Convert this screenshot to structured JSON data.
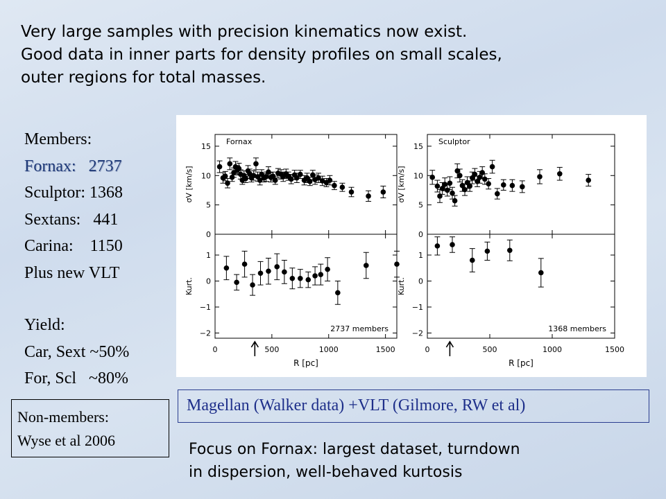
{
  "headline": [
    "Very large samples with precision kinematics now exist.",
    "Good data in inner parts for density profiles on small scales,",
    "outer regions for total masses."
  ],
  "members": {
    "title": "Members:",
    "rows": [
      "Fornax:   2737",
      "Sculptor: 1368",
      "Sextans:   441",
      "Carina:    1150",
      "Plus new VLT"
    ]
  },
  "yield": {
    "title": "Yield:",
    "rows": [
      "Car, Sext ~50%",
      "For, Scl   ~80%"
    ]
  },
  "nonmembers": [
    "Non-members:",
    "Wyse et al 2006"
  ],
  "caption": "Magellan (Walker data) +VLT (Gilmore, RW et al)",
  "focus": [
    "Focus on Fornax: largest dataset, turndown",
    "in dispersion, well-behaved kurtosis"
  ],
  "chart_data": [
    {
      "type": "scatter",
      "galaxy": "Fornax",
      "annotation": "2737 members",
      "xlabel": "R [pc]",
      "xlim": [
        0,
        1600
      ],
      "xticks": [
        0,
        500,
        1000,
        1500
      ],
      "arrow_x": 350,
      "panels": [
        {
          "ylabel": "σV [km/s]",
          "ylim": [
            0,
            17
          ],
          "yticks": [
            0,
            5,
            10,
            15
          ],
          "points": [
            {
              "x": 40,
              "y": 11.5,
              "err": 1.0
            },
            {
              "x": 70,
              "y": 9.6,
              "err": 0.9
            },
            {
              "x": 90,
              "y": 9.9,
              "err": 0.8
            },
            {
              "x": 110,
              "y": 8.7,
              "err": 0.8
            },
            {
              "x": 130,
              "y": 12.0,
              "err": 1.0
            },
            {
              "x": 150,
              "y": 9.7,
              "err": 0.7
            },
            {
              "x": 165,
              "y": 10.5,
              "err": 0.8
            },
            {
              "x": 180,
              "y": 11.5,
              "err": 0.9
            },
            {
              "x": 195,
              "y": 10.9,
              "err": 0.8
            },
            {
              "x": 210,
              "y": 11.2,
              "err": 0.9
            },
            {
              "x": 225,
              "y": 10.2,
              "err": 0.8
            },
            {
              "x": 240,
              "y": 9.2,
              "err": 0.7
            },
            {
              "x": 255,
              "y": 10.0,
              "err": 0.8
            },
            {
              "x": 270,
              "y": 9.5,
              "err": 0.7
            },
            {
              "x": 290,
              "y": 10.8,
              "err": 0.9
            },
            {
              "x": 305,
              "y": 10.3,
              "err": 0.8
            },
            {
              "x": 320,
              "y": 9.6,
              "err": 0.7
            },
            {
              "x": 340,
              "y": 10.0,
              "err": 0.8
            },
            {
              "x": 360,
              "y": 12.0,
              "err": 1.0
            },
            {
              "x": 375,
              "y": 9.8,
              "err": 0.8
            },
            {
              "x": 395,
              "y": 9.2,
              "err": 0.8
            },
            {
              "x": 410,
              "y": 10.2,
              "err": 0.8
            },
            {
              "x": 430,
              "y": 9.6,
              "err": 0.7
            },
            {
              "x": 450,
              "y": 9.8,
              "err": 0.8
            },
            {
              "x": 470,
              "y": 10.6,
              "err": 0.9
            },
            {
              "x": 490,
              "y": 9.7,
              "err": 0.8
            },
            {
              "x": 510,
              "y": 9.9,
              "err": 0.7
            },
            {
              "x": 530,
              "y": 9.2,
              "err": 0.7
            },
            {
              "x": 555,
              "y": 10.4,
              "err": 0.8
            },
            {
              "x": 580,
              "y": 10.2,
              "err": 0.8
            },
            {
              "x": 600,
              "y": 9.8,
              "err": 0.8
            },
            {
              "x": 625,
              "y": 10.3,
              "err": 0.8
            },
            {
              "x": 645,
              "y": 9.9,
              "err": 0.7
            },
            {
              "x": 670,
              "y": 9.4,
              "err": 0.8
            },
            {
              "x": 700,
              "y": 10.1,
              "err": 0.8
            },
            {
              "x": 720,
              "y": 9.6,
              "err": 0.8
            },
            {
              "x": 750,
              "y": 10.2,
              "err": 0.7
            },
            {
              "x": 785,
              "y": 9.2,
              "err": 0.8
            },
            {
              "x": 810,
              "y": 9.6,
              "err": 0.8
            },
            {
              "x": 835,
              "y": 9.0,
              "err": 0.7
            },
            {
              "x": 860,
              "y": 10.1,
              "err": 0.8
            },
            {
              "x": 880,
              "y": 9.3,
              "err": 0.8
            },
            {
              "x": 910,
              "y": 9.6,
              "err": 0.8
            },
            {
              "x": 945,
              "y": 9.1,
              "err": 0.8
            },
            {
              "x": 980,
              "y": 8.8,
              "err": 0.7
            },
            {
              "x": 1010,
              "y": 9.2,
              "err": 0.8
            },
            {
              "x": 1050,
              "y": 8.3,
              "err": 0.7
            },
            {
              "x": 1120,
              "y": 8.0,
              "err": 0.7
            },
            {
              "x": 1200,
              "y": 7.2,
              "err": 0.8
            },
            {
              "x": 1350,
              "y": 6.5,
              "err": 0.9
            },
            {
              "x": 1480,
              "y": 7.2,
              "err": 1.0
            }
          ]
        },
        {
          "ylabel": "Kurt.",
          "ylim": [
            -2.2,
            1.8
          ],
          "yticks": [
            -2,
            -1,
            0,
            1
          ],
          "points": [
            {
              "x": 100,
              "y": 0.5,
              "err": 0.45
            },
            {
              "x": 190,
              "y": -0.05,
              "err": 0.3
            },
            {
              "x": 260,
              "y": 0.65,
              "err": 0.5
            },
            {
              "x": 330,
              "y": -0.15,
              "err": 0.4
            },
            {
              "x": 400,
              "y": 0.3,
              "err": 0.45
            },
            {
              "x": 470,
              "y": 0.38,
              "err": 0.5
            },
            {
              "x": 545,
              "y": 0.55,
              "err": 0.5
            },
            {
              "x": 610,
              "y": 0.35,
              "err": 0.45
            },
            {
              "x": 680,
              "y": 0.1,
              "err": 0.4
            },
            {
              "x": 750,
              "y": 0.1,
              "err": 0.35
            },
            {
              "x": 820,
              "y": 0.05,
              "err": 0.3
            },
            {
              "x": 880,
              "y": 0.2,
              "err": 0.35
            },
            {
              "x": 930,
              "y": 0.25,
              "err": 0.4
            },
            {
              "x": 990,
              "y": 0.45,
              "err": 0.45
            },
            {
              "x": 1080,
              "y": -0.45,
              "err": 0.45
            },
            {
              "x": 1330,
              "y": 0.6,
              "err": 0.5
            },
            {
              "x": 1600,
              "y": 0.65,
              "err": 0.5
            }
          ]
        }
      ]
    },
    {
      "type": "scatter",
      "galaxy": "Sculptor",
      "annotation": "1368 members",
      "xlabel": "R [pc]",
      "xlim": [
        0,
        1500
      ],
      "xticks": [
        0,
        500,
        1000,
        1500
      ],
      "arrow_x": 180,
      "panels": [
        {
          "ylabel": "σV [km/s]",
          "ylim": [
            0,
            17
          ],
          "yticks": [
            0,
            5,
            10,
            15
          ],
          "points": [
            {
              "x": 40,
              "y": 9.7,
              "err": 1.2
            },
            {
              "x": 80,
              "y": 8.2,
              "err": 1.0
            },
            {
              "x": 100,
              "y": 6.5,
              "err": 1.1
            },
            {
              "x": 120,
              "y": 7.8,
              "err": 1.0
            },
            {
              "x": 140,
              "y": 8.5,
              "err": 1.1
            },
            {
              "x": 160,
              "y": 7.5,
              "err": 1.0
            },
            {
              "x": 180,
              "y": 8.7,
              "err": 1.1
            },
            {
              "x": 200,
              "y": 7.0,
              "err": 1.0
            },
            {
              "x": 220,
              "y": 5.7,
              "err": 0.9
            },
            {
              "x": 240,
              "y": 10.8,
              "err": 1.2
            },
            {
              "x": 260,
              "y": 10.0,
              "err": 1.1
            },
            {
              "x": 280,
              "y": 8.3,
              "err": 1.0
            },
            {
              "x": 300,
              "y": 7.6,
              "err": 1.0
            },
            {
              "x": 320,
              "y": 8.8,
              "err": 1.0
            },
            {
              "x": 340,
              "y": 8.2,
              "err": 0.9
            },
            {
              "x": 360,
              "y": 9.6,
              "err": 1.0
            },
            {
              "x": 380,
              "y": 10.2,
              "err": 1.0
            },
            {
              "x": 400,
              "y": 9.0,
              "err": 0.9
            },
            {
              "x": 420,
              "y": 9.7,
              "err": 1.0
            },
            {
              "x": 440,
              "y": 10.5,
              "err": 1.0
            },
            {
              "x": 460,
              "y": 9.4,
              "err": 0.9
            },
            {
              "x": 490,
              "y": 8.6,
              "err": 0.9
            },
            {
              "x": 520,
              "y": 11.5,
              "err": 1.1
            },
            {
              "x": 560,
              "y": 6.9,
              "err": 0.9
            },
            {
              "x": 610,
              "y": 8.4,
              "err": 0.9
            },
            {
              "x": 680,
              "y": 8.3,
              "err": 1.0
            },
            {
              "x": 760,
              "y": 8.1,
              "err": 1.0
            },
            {
              "x": 900,
              "y": 9.8,
              "err": 1.2
            },
            {
              "x": 1060,
              "y": 10.3,
              "err": 1.1
            },
            {
              "x": 1290,
              "y": 9.2,
              "err": 1.0
            }
          ]
        },
        {
          "ylabel": "Kurt.",
          "ylim": [
            -2.2,
            1.8
          ],
          "yticks": [
            -2,
            -1,
            0,
            1
          ],
          "points": [
            {
              "x": 80,
              "y": 1.35,
              "err": 0.35
            },
            {
              "x": 200,
              "y": 1.4,
              "err": 0.3
            },
            {
              "x": 360,
              "y": 0.8,
              "err": 0.45
            },
            {
              "x": 480,
              "y": 1.15,
              "err": 0.35
            },
            {
              "x": 660,
              "y": 1.18,
              "err": 0.4
            },
            {
              "x": 910,
              "y": 0.32,
              "err": 0.55
            }
          ]
        }
      ]
    }
  ]
}
